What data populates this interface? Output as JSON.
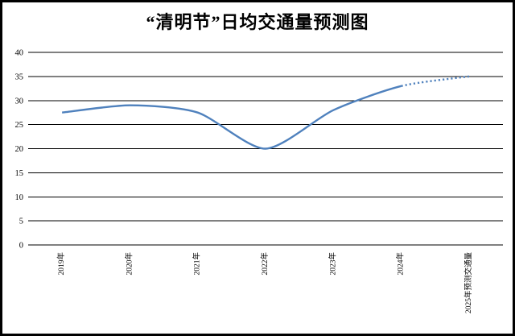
{
  "chart_data": {
    "type": "line",
    "title": "“清明节”日均交通量预测图",
    "categories": [
      "2019年",
      "2020年",
      "2021年",
      "2022年",
      "2023年",
      "2024年",
      "2025年预测交通量"
    ],
    "series": [
      {
        "values": [
          27.5,
          29,
          27.5,
          20,
          28,
          33,
          35
        ],
        "dotted_segment": {
          "from_index": 5,
          "to_index": 6
        }
      }
    ],
    "ylim": [
      0,
      40
    ],
    "yticks": [
      0,
      5,
      10,
      15,
      20,
      25,
      30,
      35,
      40
    ],
    "xlabel": "",
    "ylabel": "",
    "grid": "horizontal-only",
    "legend": "none",
    "x_tick_rotation": -90,
    "line_color": "#4F81BD"
  },
  "colors": {
    "background": "#FFFFFF",
    "frame_border": "#000000",
    "gridline": "#000000",
    "text": "#000000",
    "line": "#4F81BD"
  }
}
